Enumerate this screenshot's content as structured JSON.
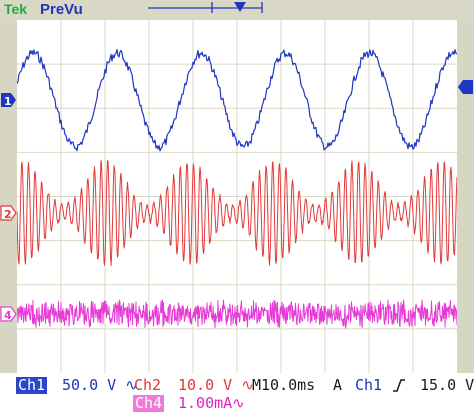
{
  "topbar": {
    "trigger_status": "Tek",
    "acquisition_mode": "PreVu"
  },
  "markers": {
    "ch1": "1",
    "ch2": "2",
    "ch4": "4"
  },
  "readout": {
    "ch1_label": "Ch1",
    "ch1_scale": "50.0 V ∿",
    "ch2_label": "Ch2",
    "ch2_scale": "10.0 V ∿",
    "timebase": "M10.0ms",
    "trigger_letter": "A",
    "trigger_source": "Ch1",
    "trigger_slope_icon": "rising-edge-icon",
    "trigger_level": "15.0 V",
    "ch4_label": "Ch4",
    "ch4_scale": "1.00mA∿"
  },
  "colors": {
    "ch1": "#2035c0",
    "ch2": "#e23a3a",
    "ch4": "#e63cd6",
    "background": "#ffffff",
    "bezel": "#d7d6c2"
  },
  "waveforms": [
    {
      "channel": "Ch1",
      "shape": "noisy-sine",
      "cycles": 5
    },
    {
      "channel": "Ch2",
      "shape": "amplitude-modulated-carrier"
    },
    {
      "channel": "Ch4",
      "shape": "noise-band"
    }
  ]
}
